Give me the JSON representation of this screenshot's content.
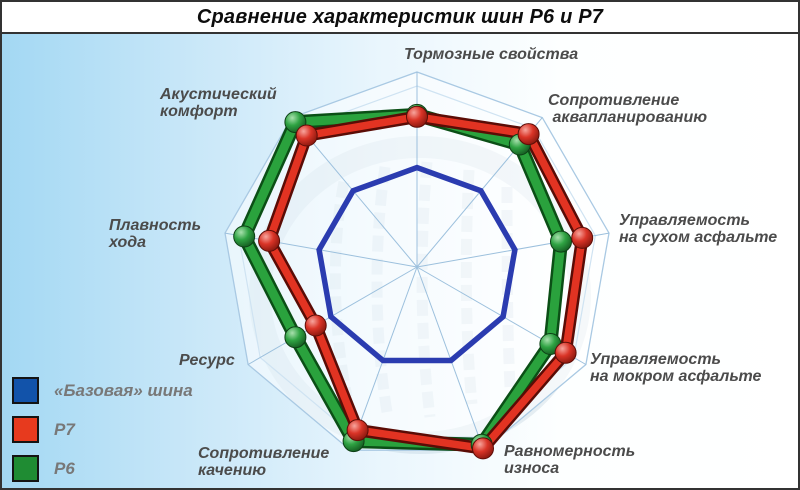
{
  "title": "Сравнение характеристик шин Р6 и Р7",
  "legend": [
    {
      "label": "«Базовая» шина",
      "color": "#1253aa"
    },
    {
      "label": "Р7",
      "color": "#e73a1e"
    },
    {
      "label": "Р6",
      "color": "#1f8c33"
    }
  ],
  "axis_labels": [
    {
      "text": "Тормозные свойства"
    },
    {
      "text": "Сопротивление\n аквапланированию"
    },
    {
      "text": "Управляемость\nна сухом асфальте"
    },
    {
      "text": "Управляемость\nна мокром асфальте"
    },
    {
      "text": "Равномерность\nизноса"
    },
    {
      "text": "Сопротивление\nкачению"
    },
    {
      "text": "Ресурс"
    },
    {
      "text": "Плавность\nхода"
    },
    {
      "text": "Акустический\nкомфорт"
    }
  ],
  "chart_data": {
    "type": "radar",
    "title": "Сравнение характеристик шин Р6 и Р7",
    "axes_count": 9,
    "scale_max": 10,
    "grid": {
      "outer_ring": true,
      "spokes": true
    },
    "legend_position": "bottom-left",
    "categories": [
      "Тормозные свойства",
      "Сопротивление аквапланированию",
      "Управляемость на сухом асфальте",
      "Управляемость на мокром асфальте",
      "Равномерность износа",
      "Сопротивление качению",
      "Ресурс",
      "Плавность хода",
      "Акустический комфорт"
    ],
    "series": [
      {
        "name": "«Базовая» шина",
        "role": "reference",
        "color": "#2b3cb0",
        "values": [
          5.1,
          5.1,
          5.1,
          5.1,
          5.1,
          5.1,
          5.1,
          5.1,
          5.1
        ]
      },
      {
        "name": "Р7",
        "color": "#e23322",
        "edge_color": "#5a0c06",
        "values": [
          7.7,
          8.9,
          8.6,
          8.8,
          9.9,
          8.9,
          6.0,
          7.7,
          8.8
        ]
      },
      {
        "name": "Р6",
        "color": "#2aa23d",
        "edge_color": "#0b4f16",
        "values": [
          7.8,
          8.2,
          7.5,
          7.9,
          9.7,
          9.5,
          7.2,
          9.0,
          9.7
        ]
      }
    ]
  }
}
